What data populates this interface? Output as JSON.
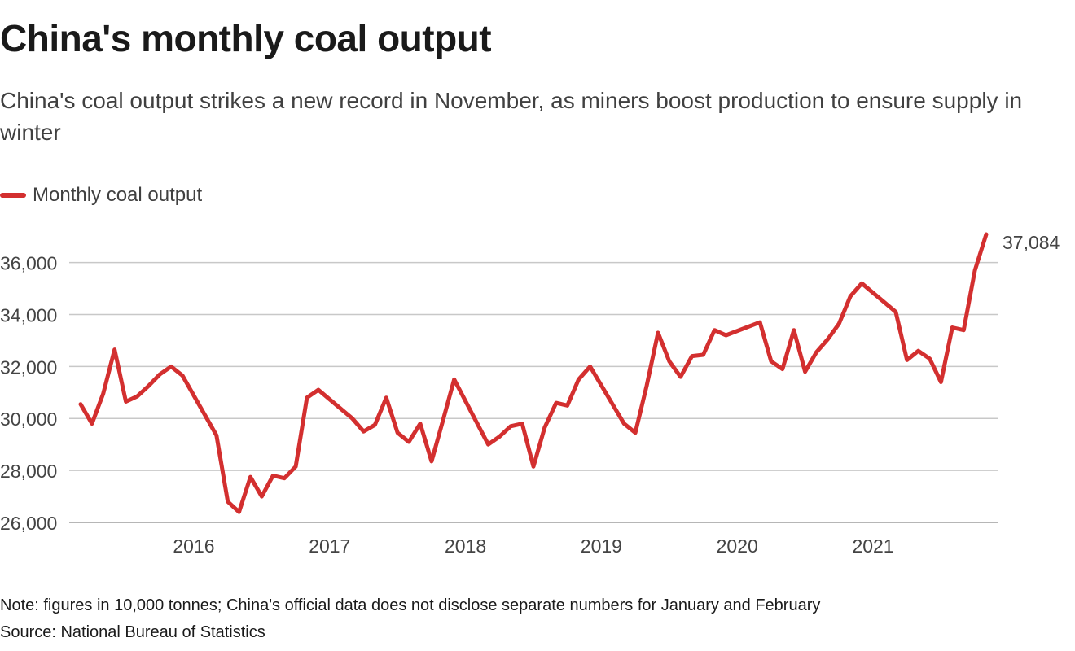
{
  "title": "China's monthly coal output",
  "subtitle": "China's coal output strikes a new record in November, as miners boost production to ensure supply in winter",
  "legend": {
    "label": "Monthly coal output",
    "color": "#d32f2f"
  },
  "footer": {
    "note": "Note: figures in 10,000 tonnes; China's official data does not disclose separate numbers for January and February",
    "source": "Source: National Bureau of Statistics"
  },
  "chart_data": {
    "type": "line",
    "title": "China's monthly coal output",
    "xlabel": "",
    "ylabel": "",
    "unit": "10,000 tonnes",
    "ylim": [
      26000,
      37084
    ],
    "yticks": [
      26000,
      28000,
      30000,
      32000,
      34000,
      36000
    ],
    "ytick_labels": [
      "26,000",
      "28,000",
      "30,000",
      "32,000",
      "34,000",
      "36,000"
    ],
    "xlim": [
      2015.083,
      2021.917
    ],
    "xticks": [
      2016,
      2017,
      2018,
      2019,
      2020,
      2021
    ],
    "xtick_labels": [
      "2016",
      "2017",
      "2018",
      "2019",
      "2020",
      "2021"
    ],
    "grid": true,
    "last_value_label": "37,084",
    "series": [
      {
        "name": "Monthly coal output",
        "color": "#d32f2f",
        "points": [
          [
            2015.167,
            30550
          ],
          [
            2015.25,
            29800
          ],
          [
            2015.333,
            30950
          ],
          [
            2015.417,
            32650
          ],
          [
            2015.5,
            30650
          ],
          [
            2015.583,
            30850
          ],
          [
            2015.667,
            31250
          ],
          [
            2015.75,
            31700
          ],
          [
            2015.833,
            32000
          ],
          [
            2015.917,
            31650
          ],
          [
            2016.167,
            29350
          ],
          [
            2016.25,
            26800
          ],
          [
            2016.333,
            26400
          ],
          [
            2016.417,
            27750
          ],
          [
            2016.5,
            27000
          ],
          [
            2016.583,
            27800
          ],
          [
            2016.667,
            27700
          ],
          [
            2016.75,
            28150
          ],
          [
            2016.833,
            30800
          ],
          [
            2016.917,
            31100
          ],
          [
            2017.167,
            30000
          ],
          [
            2017.25,
            29500
          ],
          [
            2017.333,
            29750
          ],
          [
            2017.417,
            30800
          ],
          [
            2017.5,
            29450
          ],
          [
            2017.583,
            29100
          ],
          [
            2017.667,
            29800
          ],
          [
            2017.75,
            28350
          ],
          [
            2017.833,
            29900
          ],
          [
            2017.917,
            31500
          ],
          [
            2018.167,
            29000
          ],
          [
            2018.25,
            29300
          ],
          [
            2018.333,
            29700
          ],
          [
            2018.417,
            29800
          ],
          [
            2018.5,
            28150
          ],
          [
            2018.583,
            29650
          ],
          [
            2018.667,
            30600
          ],
          [
            2018.75,
            30500
          ],
          [
            2018.833,
            31500
          ],
          [
            2018.917,
            32000
          ],
          [
            2019.167,
            29800
          ],
          [
            2019.25,
            29450
          ],
          [
            2019.333,
            31250
          ],
          [
            2019.417,
            33300
          ],
          [
            2019.5,
            32200
          ],
          [
            2019.583,
            31600
          ],
          [
            2019.667,
            32400
          ],
          [
            2019.75,
            32450
          ],
          [
            2019.833,
            33400
          ],
          [
            2019.917,
            33200
          ],
          [
            2020.167,
            33700
          ],
          [
            2020.25,
            32200
          ],
          [
            2020.333,
            31900
          ],
          [
            2020.417,
            33400
          ],
          [
            2020.5,
            31800
          ],
          [
            2020.583,
            32550
          ],
          [
            2020.667,
            33050
          ],
          [
            2020.75,
            33650
          ],
          [
            2020.833,
            34700
          ],
          [
            2020.917,
            35200
          ],
          [
            2021.167,
            34100
          ],
          [
            2021.25,
            32250
          ],
          [
            2021.333,
            32600
          ],
          [
            2021.417,
            32300
          ],
          [
            2021.5,
            31400
          ],
          [
            2021.583,
            33500
          ],
          [
            2021.667,
            33400
          ],
          [
            2021.75,
            35700
          ],
          [
            2021.833,
            37084
          ]
        ]
      }
    ]
  }
}
